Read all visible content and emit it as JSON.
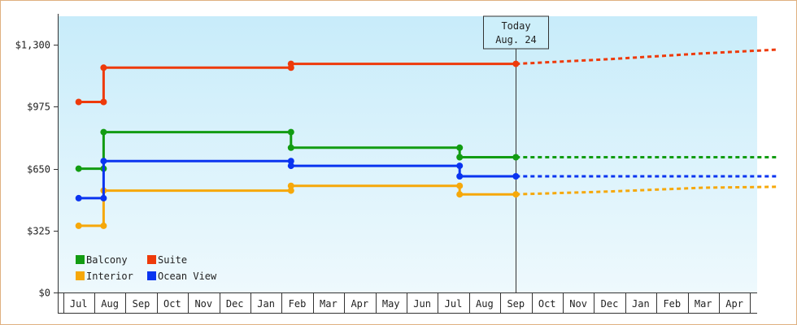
{
  "chart_data": {
    "type": "line",
    "title": "",
    "xlabel": "",
    "ylabel": "",
    "ylim": [
      0,
      1450
    ],
    "y_ticks": [
      {
        "value": 0,
        "label": "$0"
      },
      {
        "value": 325,
        "label": "$325"
      },
      {
        "value": 650,
        "label": "$650"
      },
      {
        "value": 975,
        "label": "$975"
      },
      {
        "value": 1300,
        "label": "$1,300"
      }
    ],
    "x_range": [
      0,
      22.4
    ],
    "x_tick_labels": [
      "Jul",
      "Aug",
      "Sep",
      "Oct",
      "Nov",
      "Dec",
      "Jan",
      "Feb",
      "Mar",
      "Apr",
      "May",
      "Jun",
      "Jul",
      "Aug",
      "Sep",
      "Oct",
      "Nov",
      "Dec",
      "Jan",
      "Feb",
      "Mar",
      "Apr"
    ],
    "today": {
      "x": 14.0,
      "line1": "Today",
      "line2": "Aug. 24"
    },
    "background": {
      "top": "#c8ecfa",
      "bottom": "#eef9fd"
    },
    "legend_position": "bottom-left",
    "series": [
      {
        "name": "Balcony",
        "color": "#129c12",
        "points": [
          [
            0,
            650
          ],
          [
            0.8,
            650
          ],
          [
            0.8,
            842
          ],
          [
            6.8,
            842
          ],
          [
            6.8,
            760
          ],
          [
            12.2,
            760
          ],
          [
            12.2,
            710
          ],
          [
            14.0,
            710
          ]
        ],
        "projection": [
          [
            14.0,
            710
          ],
          [
            22.4,
            710
          ]
        ]
      },
      {
        "name": "Suite",
        "color": "#ee3a0a",
        "points": [
          [
            0,
            1000
          ],
          [
            0.8,
            1000
          ],
          [
            0.8,
            1180
          ],
          [
            6.8,
            1180
          ],
          [
            6.8,
            1200
          ],
          [
            14.0,
            1200
          ]
        ],
        "projection": [
          [
            14.0,
            1200
          ],
          [
            17.0,
            1225
          ],
          [
            20.0,
            1255
          ],
          [
            22.4,
            1275
          ]
        ]
      },
      {
        "name": "Interior",
        "color": "#f6a80a",
        "points": [
          [
            0,
            350
          ],
          [
            0.8,
            350
          ],
          [
            0.8,
            535
          ],
          [
            6.8,
            535
          ],
          [
            6.8,
            560
          ],
          [
            12.2,
            560
          ],
          [
            12.2,
            515
          ],
          [
            14.0,
            515
          ]
        ],
        "projection": [
          [
            14.0,
            515
          ],
          [
            17.0,
            530
          ],
          [
            20.0,
            550
          ],
          [
            22.4,
            555
          ]
        ]
      },
      {
        "name": "Ocean View",
        "color": "#0a34f0",
        "points": [
          [
            0,
            495
          ],
          [
            0.8,
            495
          ],
          [
            0.8,
            690
          ],
          [
            6.8,
            690
          ],
          [
            6.8,
            665
          ],
          [
            12.2,
            665
          ],
          [
            12.2,
            610
          ],
          [
            14.0,
            610
          ]
        ],
        "projection": [
          [
            14.0,
            610
          ],
          [
            22.4,
            610
          ]
        ]
      }
    ]
  }
}
